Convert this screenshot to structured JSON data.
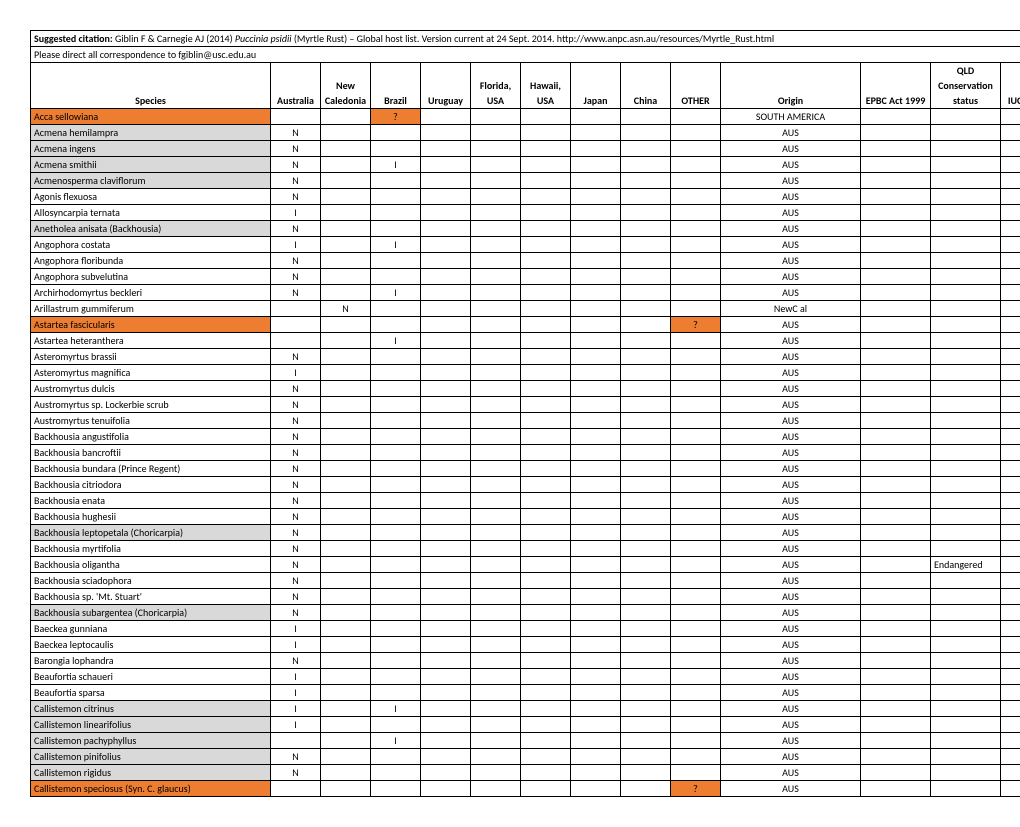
{
  "citation": {
    "label": "Suggested citation:",
    "text_before_italic": " Giblin F & Carnegie AJ (2014) ",
    "italic": "Puccinia psidii",
    "text_after_italic": " (Myrtle Rust) – Global host list. Version current at 24 Sept. 2014. http://www.anpc.asn.au/resources/Myrtle_Rust.html"
  },
  "correspondence": "Please direct all correspondence to fgiblin@usc.edu.au",
  "columns": [
    {
      "key": "species",
      "label": "Species"
    },
    {
      "key": "australia",
      "label": "Australia"
    },
    {
      "key": "newcal",
      "label": "New Caledonia"
    },
    {
      "key": "brazil",
      "label": "Brazil"
    },
    {
      "key": "uruguay",
      "label": "Uruguay"
    },
    {
      "key": "florida",
      "label": "Florida, USA"
    },
    {
      "key": "hawaii",
      "label": "Hawaii, USA"
    },
    {
      "key": "japan",
      "label": "Japan"
    },
    {
      "key": "china",
      "label": "China"
    },
    {
      "key": "other",
      "label": "OTHER"
    },
    {
      "key": "origin",
      "label": "Origin"
    },
    {
      "key": "epbc",
      "label": "EPBC Act 1999"
    },
    {
      "key": "qld",
      "label": "QLD Conservation status"
    },
    {
      "key": "iucn",
      "label": "IUCN Red List"
    }
  ],
  "rows": [
    {
      "species": "Acca sellowiana",
      "brazil": "?",
      "origin": "SOUTH AMERICA",
      "shade": "orange",
      "brazil_shade": "orange"
    },
    {
      "species": "Acmena hemilampra",
      "australia": "N",
      "origin": "AUS",
      "shade": "grey"
    },
    {
      "species": "Acmena ingens",
      "australia": "N",
      "origin": "AUS",
      "shade": "grey"
    },
    {
      "species": "Acmena smithii",
      "australia": "N",
      "brazil": "I",
      "origin": "AUS",
      "shade": "grey"
    },
    {
      "species": "Acmenosperma claviflorum",
      "australia": "N",
      "origin": "AUS",
      "shade": "grey"
    },
    {
      "species": "Agonis flexuosa",
      "australia": "N",
      "origin": "AUS"
    },
    {
      "species": "Allosyncarpia ternata",
      "australia": "I",
      "origin": "AUS"
    },
    {
      "species": "Anetholea anisata (Backhousia)",
      "australia": "N",
      "origin": "AUS",
      "shade": "grey"
    },
    {
      "species": "Angophora costata",
      "australia": "I",
      "brazil": "I",
      "origin": "AUS"
    },
    {
      "species": "Angophora floribunda",
      "australia": "N",
      "origin": "AUS"
    },
    {
      "species": "Angophora subvelutina",
      "australia": "N",
      "origin": "AUS"
    },
    {
      "species": "Archirhodomyrtus beckleri",
      "australia": "N",
      "brazil": "I",
      "origin": "AUS"
    },
    {
      "species": "Arillastrum gummiferum",
      "newcal": "N",
      "origin": "NewC al"
    },
    {
      "species": "Astartea fascicularis",
      "other": "?",
      "origin": "AUS",
      "shade": "orange",
      "other_shade": "orange"
    },
    {
      "species": "Astartea heteranthera",
      "brazil": "I",
      "origin": "AUS"
    },
    {
      "species": "Asteromyrtus brassii",
      "australia": "N",
      "origin": "AUS"
    },
    {
      "species": "Asteromyrtus magnifica",
      "australia": "I",
      "origin": "AUS"
    },
    {
      "species": "Austromyrtus dulcis",
      "australia": "N",
      "origin": "AUS"
    },
    {
      "species": "Austromyrtus sp. Lockerbie scrub",
      "australia": "N",
      "origin": "AUS"
    },
    {
      "species": "Austromyrtus tenuifolia",
      "australia": "N",
      "origin": "AUS"
    },
    {
      "species": "Backhousia angustifolia",
      "australia": "N",
      "origin": "AUS"
    },
    {
      "species": "Backhousia bancroftii",
      "australia": "N",
      "origin": "AUS"
    },
    {
      "species": "Backhousia bundara (Prince Regent)",
      "australia": "N",
      "origin": "AUS"
    },
    {
      "species": "Backhousia citriodora",
      "australia": "N",
      "origin": "AUS"
    },
    {
      "species": "Backhousia enata",
      "australia": "N",
      "origin": "AUS"
    },
    {
      "species": "Backhousia hughesii",
      "australia": "N",
      "origin": "AUS"
    },
    {
      "species": "Backhousia leptopetala (Choricarpia)",
      "australia": "N",
      "origin": "AUS",
      "shade": "grey"
    },
    {
      "species": "Backhousia myrtifolia",
      "australia": "N",
      "origin": "AUS"
    },
    {
      "species": "Backhousia oligantha",
      "australia": "N",
      "origin": "AUS",
      "qld": "Endangered"
    },
    {
      "species": "Backhousia sciadophora",
      "australia": "N",
      "origin": "AUS"
    },
    {
      "species": "Backhousia sp. 'Mt. Stuart'",
      "australia": "N",
      "origin": "AUS"
    },
    {
      "species": "Backhousia subargentea (Choricarpia)",
      "australia": "N",
      "origin": "AUS",
      "shade": "grey"
    },
    {
      "species": "Baeckea gunniana",
      "australia": "I",
      "origin": "AUS"
    },
    {
      "species": "Baeckea leptocaulis",
      "australia": "I",
      "origin": "AUS"
    },
    {
      "species": "Barongia lophandra",
      "australia": "N",
      "origin": "AUS"
    },
    {
      "species": "Beaufortia schaueri",
      "australia": "I",
      "origin": "AUS"
    },
    {
      "species": "Beaufortia sparsa",
      "australia": "I",
      "origin": "AUS"
    },
    {
      "species": "Callistemon citrinus",
      "australia": "I",
      "brazil": "I",
      "origin": "AUS",
      "shade": "grey"
    },
    {
      "species": "Callistemon linearifolius",
      "australia": "I",
      "origin": "AUS",
      "shade": "grey"
    },
    {
      "species": "Callistemon pachyphyllus",
      "brazil": "I",
      "origin": "AUS",
      "shade": "grey"
    },
    {
      "species": "Callistemon pinifolius",
      "australia": "N",
      "origin": "AUS",
      "shade": "grey"
    },
    {
      "species": "Callistemon rigidus",
      "australia": "N",
      "origin": "AUS",
      "shade": "grey"
    },
    {
      "species": "Callistemon speciosus (Syn. C. glaucus)",
      "other": "?",
      "origin": "AUS",
      "shade": "orange",
      "other_shade": "orange"
    }
  ]
}
